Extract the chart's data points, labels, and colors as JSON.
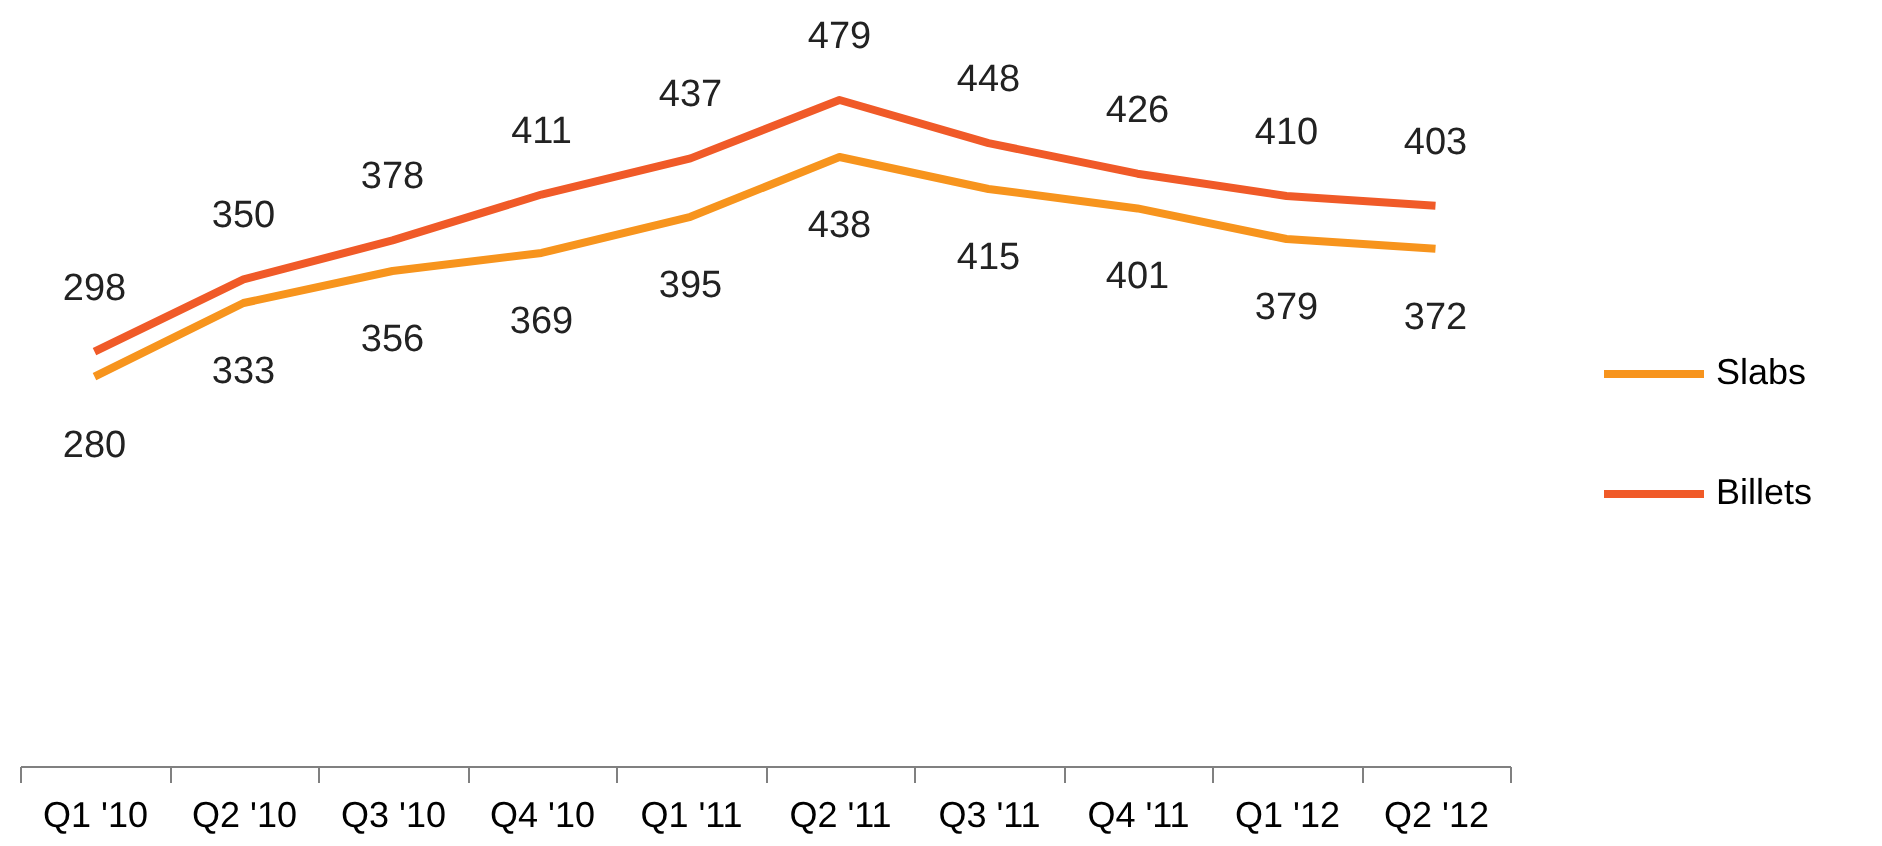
{
  "chart_data": {
    "type": "line",
    "categories": [
      "Q1 '10",
      "Q2 '10",
      "Q3 '10",
      "Q4 '10",
      "Q1 '11",
      "Q2 '11",
      "Q3 '11",
      "Q4 '11",
      "Q1 '12",
      "Q2 '12"
    ],
    "series": [
      {
        "name": "Slabs",
        "color": "#f7941d",
        "values": [
          280,
          333,
          356,
          369,
          395,
          438,
          415,
          401,
          379,
          372
        ]
      },
      {
        "name": "Billets",
        "color": "#f05a28",
        "values": [
          298,
          350,
          378,
          411,
          437,
          479,
          448,
          426,
          410,
          403
        ]
      }
    ],
    "data_labels": true,
    "legend": "right",
    "tick_labels": "x",
    "grid": false
  }
}
